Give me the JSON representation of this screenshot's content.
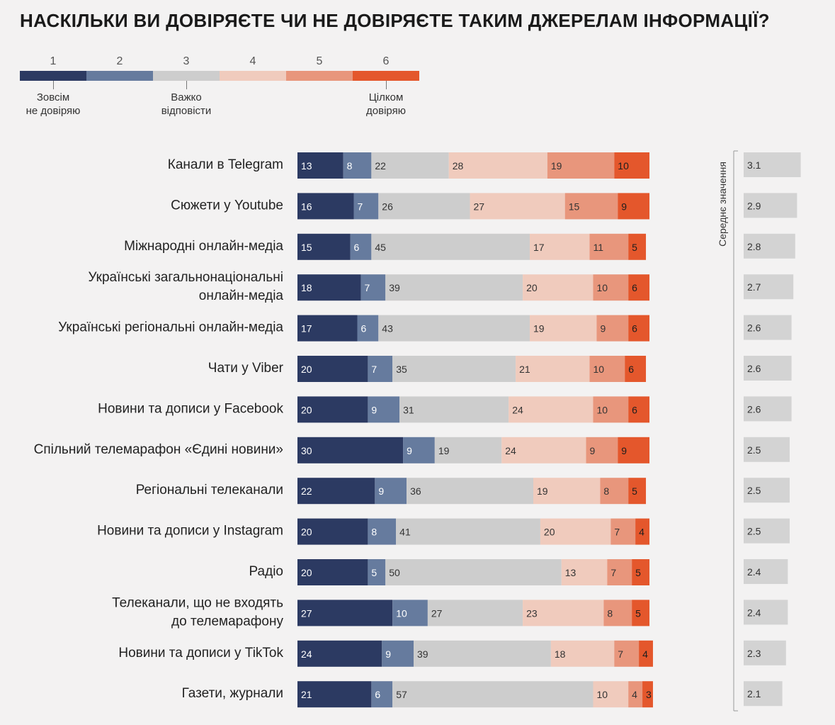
{
  "title": "НАСКІЛЬКИ ВИ ДОВІРЯЄТЕ ЧИ НЕ ДОВІРЯЄТЕ ТАКИМ ДЖЕРЕЛАМ ІНФОРМАЦІЇ?",
  "scale_legend": {
    "levels": [
      "1",
      "2",
      "3",
      "4",
      "5",
      "6"
    ],
    "low_label": "Зовсім\nне довіряю",
    "mid_label": "Важко\nвідповісти",
    "high_label": "Цілком\nдовіряю"
  },
  "colors": [
    "#2c3a62",
    "#667b9e",
    "#cdcdcd",
    "#f0cbbd",
    "#e8967c",
    "#e4572c"
  ],
  "chart_data": {
    "type": "bar",
    "stacked": true,
    "orientation": "horizontal",
    "categories": [
      "Канали в Telegram",
      "Сюжети у Youtube",
      "Міжнародні онлайн-медіа",
      "Українські загальнонаціональні\nонлайн-медіа",
      "Українські регіональні онлайн-медіа",
      "Чати у Viber",
      "Новини та дописи у Facebook",
      "Спільний телемарафон «Єдині новини»",
      "Регіональні телеканали",
      "Новини та дописи у Instagram",
      "Радіо",
      "Телеканали, що не входять\nдо телемарафону",
      "Новини та дописи у TikTok",
      "Газети, журнали"
    ],
    "series": [
      {
        "name": "1",
        "values": [
          13,
          16,
          15,
          18,
          17,
          20,
          20,
          30,
          22,
          20,
          20,
          27,
          24,
          21
        ]
      },
      {
        "name": "2",
        "values": [
          8,
          7,
          6,
          7,
          6,
          7,
          9,
          9,
          9,
          8,
          5,
          10,
          9,
          6
        ]
      },
      {
        "name": "3",
        "values": [
          22,
          26,
          45,
          39,
          43,
          35,
          31,
          19,
          36,
          41,
          50,
          27,
          39,
          57
        ]
      },
      {
        "name": "4",
        "values": [
          28,
          27,
          17,
          20,
          19,
          21,
          24,
          24,
          19,
          20,
          13,
          23,
          18,
          10
        ]
      },
      {
        "name": "5",
        "values": [
          19,
          15,
          11,
          10,
          9,
          10,
          10,
          9,
          8,
          7,
          7,
          8,
          7,
          4
        ]
      },
      {
        "name": "6",
        "values": [
          10,
          9,
          5,
          6,
          6,
          6,
          6,
          9,
          5,
          4,
          5,
          5,
          4,
          3
        ]
      }
    ],
    "mean_label": "Середнє значення",
    "means": [
      3.1,
      2.9,
      2.8,
      2.7,
      2.6,
      2.6,
      2.6,
      2.5,
      2.5,
      2.5,
      2.4,
      2.4,
      2.3,
      2.1
    ],
    "mean_color": "#d3d3d3"
  }
}
